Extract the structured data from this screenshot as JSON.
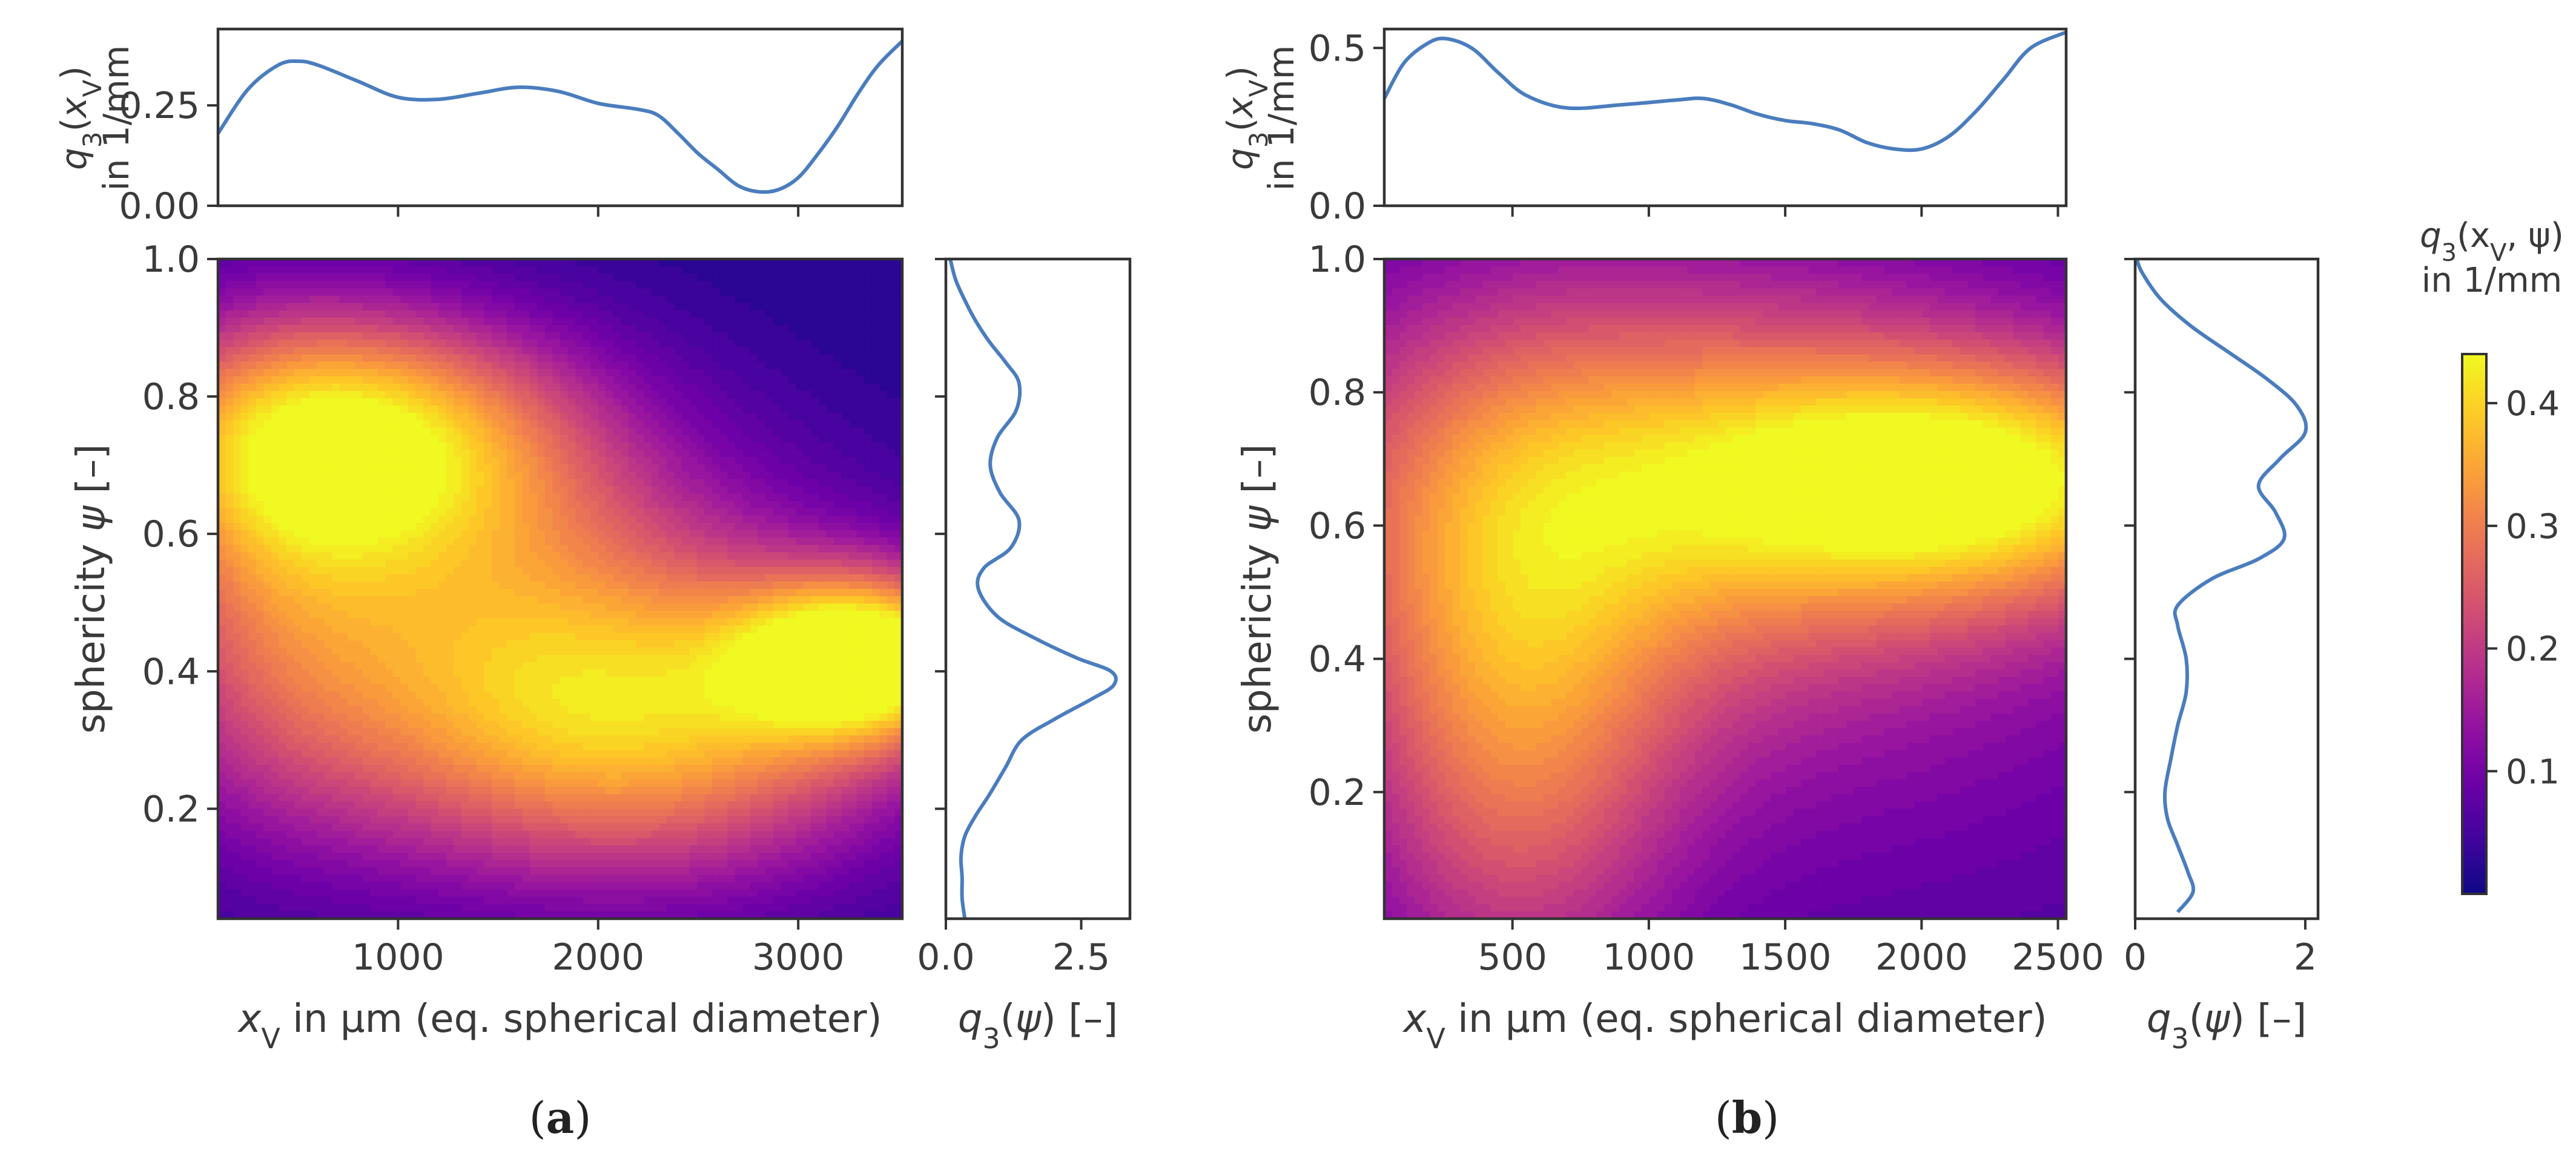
{
  "chart_data": [
    {
      "id": "a",
      "type": "heatmap",
      "panel_label": "a",
      "xlabel_main": "x",
      "xlabel_sub": "V",
      "xlabel_rest": " in µm (eq. spherical diameter)",
      "ylabel_main": "sphericity ",
      "ylabel_symbol": "ψ",
      "ylabel_rest": " [–]",
      "x_range": [
        100,
        3520
      ],
      "y_range": [
        0.04,
        1.0
      ],
      "x_ticks": [
        1000,
        2000,
        3000
      ],
      "x_tick_labels": [
        "1000",
        "2000",
        "3000"
      ],
      "y_ticks": [
        0.2,
        0.4,
        0.6,
        0.8,
        1.0
      ],
      "y_tick_labels": [
        "0.2",
        "0.4",
        "0.6",
        "0.8",
        "1.0"
      ],
      "field": {
        "base": 0.02,
        "components": [
          {
            "x": 800,
            "y": 0.74,
            "sx": 800,
            "sy": 0.13,
            "amp": 0.36,
            "rot": -0.55
          },
          {
            "x": 3350,
            "y": 0.42,
            "sx": 450,
            "sy": 0.085,
            "amp": 0.4,
            "rot": 0
          },
          {
            "x": 1600,
            "y": 0.42,
            "sx": 1100,
            "sy": 0.2,
            "amp": 0.28,
            "rot": -0.25
          },
          {
            "x": 2400,
            "y": 0.3,
            "sx": 900,
            "sy": 0.15,
            "amp": 0.18,
            "rot": 0
          },
          {
            "x": 350,
            "y": 0.55,
            "sx": 500,
            "sy": 0.25,
            "amp": 0.12,
            "rot": 0
          }
        ]
      },
      "top_marginal": {
        "ylabel_line1": "q",
        "ylabel_line2": "in 1/mm",
        "y_range": [
          0,
          0.44
        ],
        "y_ticks": [
          0,
          0.25
        ],
        "y_tick_labels": [
          "0.00",
          "0.25"
        ],
        "x": [
          100,
          250,
          400,
          500,
          600,
          800,
          1000,
          1200,
          1400,
          1600,
          1800,
          2000,
          2200,
          2300,
          2400,
          2500,
          2600,
          2700,
          2800,
          2900,
          3000,
          3100,
          3200,
          3300,
          3400,
          3520
        ],
        "values": [
          0.18,
          0.29,
          0.35,
          0.36,
          0.35,
          0.31,
          0.27,
          0.265,
          0.28,
          0.295,
          0.285,
          0.255,
          0.24,
          0.225,
          0.18,
          0.13,
          0.09,
          0.05,
          0.035,
          0.04,
          0.07,
          0.13,
          0.2,
          0.28,
          0.35,
          0.41
        ]
      },
      "right_marginal": {
        "xlabel_main": "q",
        "xlabel_rest": " [–]",
        "x_range": [
          0,
          3.4
        ],
        "x_ticks": [
          0,
          2.5
        ],
        "x_tick_labels": [
          "0.0",
          "2.5"
        ],
        "y": [
          0.04,
          0.07,
          0.1,
          0.13,
          0.16,
          0.19,
          0.22,
          0.26,
          0.3,
          0.33,
          0.36,
          0.38,
          0.4,
          0.42,
          0.45,
          0.48,
          0.52,
          0.55,
          0.58,
          0.62,
          0.66,
          0.7,
          0.74,
          0.78,
          0.82,
          0.85,
          0.88,
          0.91,
          0.94,
          0.97,
          1.0
        ],
        "values": [
          0.35,
          0.3,
          0.3,
          0.28,
          0.35,
          0.55,
          0.8,
          1.1,
          1.4,
          2.0,
          2.7,
          3.1,
          3.05,
          2.4,
          1.6,
          0.95,
          0.6,
          0.7,
          1.2,
          1.35,
          1.0,
          0.82,
          0.95,
          1.3,
          1.35,
          1.1,
          0.8,
          0.55,
          0.35,
          0.18,
          0.08
        ]
      }
    },
    {
      "id": "b",
      "type": "heatmap",
      "panel_label": "b",
      "xlabel_main": "x",
      "xlabel_sub": "V",
      "xlabel_rest": " in µm (eq. spherical diameter)",
      "ylabel_main": "sphericity ",
      "ylabel_symbol": "ψ",
      "ylabel_rest": " [–]",
      "x_range": [
        30,
        2530
      ],
      "y_range": [
        0.01,
        1.0
      ],
      "x_ticks": [
        500,
        1000,
        1500,
        2000,
        2500
      ],
      "x_tick_labels": [
        "500",
        "1000",
        "1500",
        "2000",
        "2500"
      ],
      "y_ticks": [
        0.2,
        0.4,
        0.6,
        0.8,
        1.0
      ],
      "y_tick_labels": [
        "0.2",
        "0.4",
        "0.6",
        "0.8",
        "1.0"
      ],
      "field": {
        "base": 0.04,
        "components": [
          {
            "x": 2200,
            "y": 0.67,
            "sx": 700,
            "sy": 0.13,
            "amp": 0.32,
            "rot": 0
          },
          {
            "x": 900,
            "y": 0.68,
            "sx": 900,
            "sy": 0.22,
            "amp": 0.2,
            "rot": 0
          },
          {
            "x": 500,
            "y": 0.3,
            "sx": 420,
            "sy": 0.3,
            "amp": 0.2,
            "rot": 0
          },
          {
            "x": 1500,
            "y": 0.5,
            "sx": 1300,
            "sy": 0.35,
            "amp": 0.1,
            "rot": 0
          }
        ]
      },
      "top_marginal": {
        "ylabel_line1": "q",
        "ylabel_line2": "in 1/mm",
        "y_range": [
          0,
          0.56
        ],
        "y_ticks": [
          0,
          0.5
        ],
        "y_tick_labels": [
          "0.0",
          "0.5"
        ],
        "x": [
          30,
          100,
          180,
          250,
          350,
          450,
          550,
          700,
          900,
          1100,
          1200,
          1300,
          1400,
          1500,
          1600,
          1700,
          1800,
          1900,
          2000,
          2100,
          2200,
          2300,
          2400,
          2530
        ],
        "values": [
          0.34,
          0.45,
          0.51,
          0.53,
          0.5,
          0.42,
          0.35,
          0.31,
          0.32,
          0.335,
          0.34,
          0.32,
          0.29,
          0.27,
          0.26,
          0.24,
          0.2,
          0.18,
          0.18,
          0.22,
          0.3,
          0.4,
          0.5,
          0.55
        ]
      },
      "right_marginal": {
        "xlabel_main": "q",
        "xlabel_rest": " [–]",
        "x_range": [
          0,
          2.15
        ],
        "x_ticks": [
          0,
          2
        ],
        "x_tick_labels": [
          "0",
          "2"
        ],
        "y": [
          0.02,
          0.05,
          0.08,
          0.12,
          0.16,
          0.2,
          0.25,
          0.3,
          0.35,
          0.4,
          0.45,
          0.48,
          0.52,
          0.55,
          0.58,
          0.62,
          0.66,
          0.7,
          0.74,
          0.78,
          0.82,
          0.86,
          0.9,
          0.94,
          0.98,
          1.0
        ],
        "values": [
          0.5,
          0.68,
          0.62,
          0.5,
          0.38,
          0.35,
          0.42,
          0.5,
          0.6,
          0.6,
          0.5,
          0.5,
          0.9,
          1.45,
          1.75,
          1.65,
          1.45,
          1.7,
          2.0,
          1.9,
          1.55,
          1.1,
          0.65,
          0.3,
          0.08,
          0.02
        ]
      }
    }
  ],
  "colorbar": {
    "title_line1_main": "q",
    "title_line1_rest": "(x",
    "title_line1_end": ", ψ)",
    "title_line2": "in 1/mm",
    "range": [
      0.0,
      0.44
    ],
    "ticks": [
      0.1,
      0.2,
      0.3,
      0.4
    ],
    "tick_labels": [
      "0.1",
      "0.2",
      "0.3",
      "0.4"
    ],
    "colormap": "plasma"
  },
  "colors": {
    "line": "#4a7dbe",
    "axes": "#333333",
    "text": "#3a3a3a",
    "plasma_stops": [
      "#0d0887",
      "#46039f",
      "#7201a8",
      "#9c179e",
      "#bd3786",
      "#d8576b",
      "#ed7953",
      "#fb9f3a",
      "#fdca26",
      "#f0f921"
    ]
  }
}
